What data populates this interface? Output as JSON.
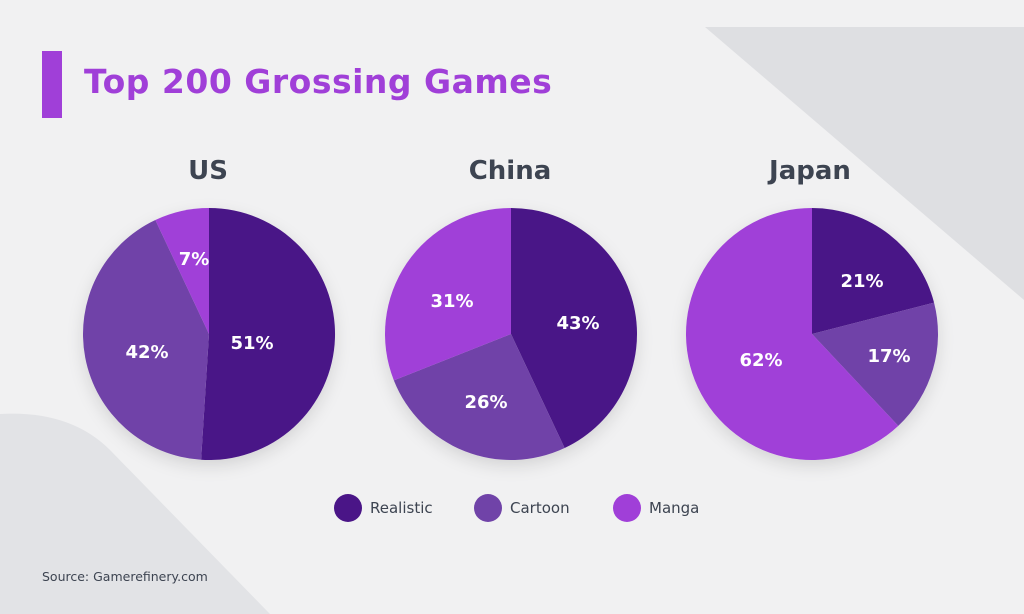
{
  "title": "Top 200 Grossing Games",
  "source": "Source: Gamerefinery.com",
  "colors": {
    "accent": "#a03fd8",
    "Realistic": "#4a1587",
    "Cartoon": "#7043a8",
    "Manga": "#a03fd8",
    "text": "#3d4451",
    "background": "#f1f1f2"
  },
  "legend": [
    "Realistic",
    "Cartoon",
    "Manga"
  ],
  "chart_data": [
    {
      "type": "pie",
      "title": "US",
      "slices": [
        {
          "label": "Realistic",
          "value": 51,
          "text": "51%"
        },
        {
          "label": "Cartoon",
          "value": 42,
          "text": "42%"
        },
        {
          "label": "Manga",
          "value": 7,
          "text": "7%"
        }
      ]
    },
    {
      "type": "pie",
      "title": "China",
      "slices": [
        {
          "label": "Realistic",
          "value": 43,
          "text": "43%"
        },
        {
          "label": "Cartoon",
          "value": 26,
          "text": "26%"
        },
        {
          "label": "Manga",
          "value": 31,
          "text": "31%"
        }
      ]
    },
    {
      "type": "pie",
      "title": "Japan",
      "slices": [
        {
          "label": "Realistic",
          "value": 21,
          "text": "21%"
        },
        {
          "label": "Cartoon",
          "value": 17,
          "text": "17%"
        },
        {
          "label": "Manga",
          "value": 62,
          "text": "62%"
        }
      ]
    }
  ]
}
